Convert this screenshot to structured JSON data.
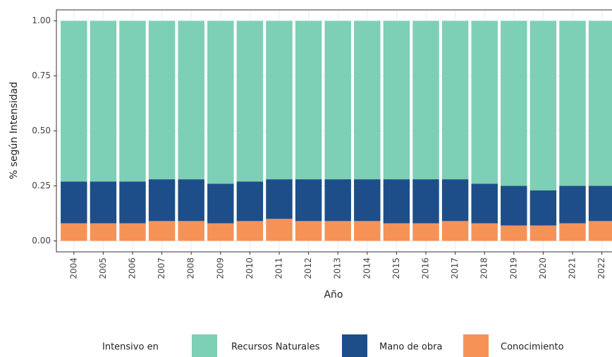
{
  "chart_data": {
    "type": "stacked_bar",
    "x_label": "Año",
    "y_label": "% según Intensidad",
    "legend_title": "Intensivo en",
    "categories": [
      "2004",
      "2005",
      "2006",
      "2007",
      "2008",
      "2009",
      "2010",
      "2011",
      "2012",
      "2013",
      "2014",
      "2015",
      "2016",
      "2017",
      "2018",
      "2019",
      "2020",
      "2021",
      "2022"
    ],
    "series": [
      {
        "name": "Recursos Naturales",
        "color": "#7dcfb6",
        "values": [
          0.73,
          0.73,
          0.73,
          0.72,
          0.72,
          0.74,
          0.73,
          0.72,
          0.72,
          0.72,
          0.72,
          0.72,
          0.72,
          0.72,
          0.74,
          0.75,
          0.77,
          0.75,
          0.75
        ]
      },
      {
        "name": "Mano de obra",
        "color": "#1d4e89",
        "values": [
          0.19,
          0.19,
          0.19,
          0.19,
          0.19,
          0.18,
          0.18,
          0.18,
          0.19,
          0.19,
          0.19,
          0.2,
          0.2,
          0.19,
          0.18,
          0.18,
          0.16,
          0.17,
          0.16
        ]
      },
      {
        "name": "Conocimiento",
        "color": "#f79256",
        "values": [
          0.08,
          0.08,
          0.08,
          0.09,
          0.09,
          0.08,
          0.09,
          0.1,
          0.09,
          0.09,
          0.09,
          0.08,
          0.08,
          0.09,
          0.08,
          0.07,
          0.07,
          0.08,
          0.09
        ]
      }
    ],
    "ylim": [
      -0.05,
      1.05
    ],
    "yticks": [
      {
        "value": 0,
        "label": "0.00"
      },
      {
        "value": 0.25,
        "label": "0.25"
      },
      {
        "value": 0.5,
        "label": "0.50"
      },
      {
        "value": 0.75,
        "label": "0.75"
      },
      {
        "value": 1,
        "label": "1.00"
      }
    ],
    "grid": true,
    "legend": "bottom"
  }
}
